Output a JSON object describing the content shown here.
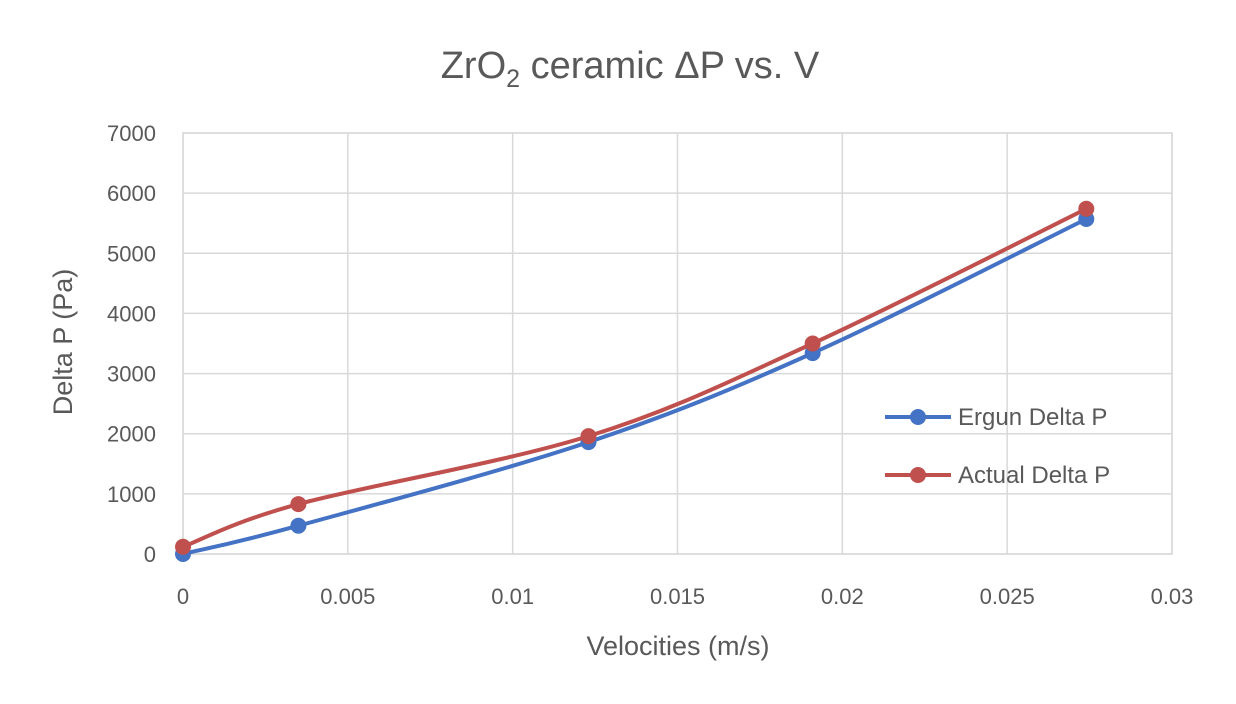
{
  "chart_data": {
    "type": "line",
    "title": {
      "prefix": "ZrO",
      "subscript": "2",
      "suffix": " ceramic ΔP vs. V"
    },
    "xlabel": "Velocities (m/s)",
    "ylabel": "Delta P (Pa)",
    "xlim": [
      0,
      0.03
    ],
    "ylim": [
      0,
      7000
    ],
    "x_ticks": [
      0,
      0.005,
      0.01,
      0.015,
      0.02,
      0.025,
      0.03
    ],
    "x_tick_labels": [
      "0",
      "0.005",
      "0.01",
      "0.015",
      "0.02",
      "0.025",
      "0.03"
    ],
    "y_ticks": [
      0,
      1000,
      2000,
      3000,
      4000,
      5000,
      6000,
      7000
    ],
    "y_tick_labels": [
      "0",
      "1000",
      "2000",
      "3000",
      "4000",
      "5000",
      "6000",
      "7000"
    ],
    "grid": true,
    "legend_position": "right",
    "series": [
      {
        "name": "Ergun Delta P",
        "color": "#4472c4",
        "x": [
          0,
          0.0035,
          0.0123,
          0.0191,
          0.0274
        ],
        "y": [
          0,
          470,
          1860,
          3340,
          5570
        ]
      },
      {
        "name": "Actual Delta P",
        "color": "#c0504d",
        "x": [
          0,
          0.0035,
          0.0123,
          0.0191,
          0.0274
        ],
        "y": [
          120,
          830,
          1960,
          3500,
          5740
        ]
      }
    ]
  }
}
